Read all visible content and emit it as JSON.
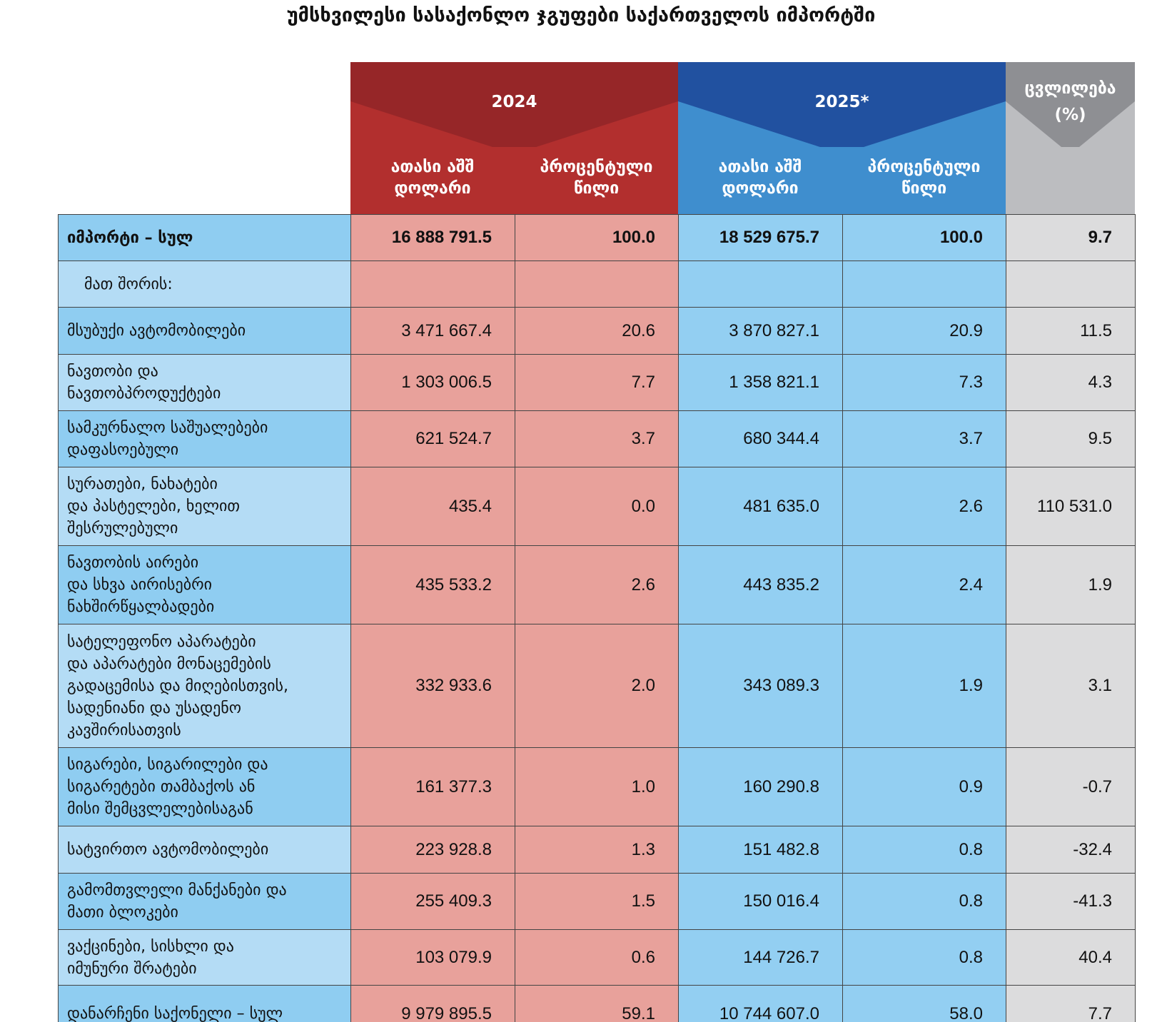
{
  "title": "უმსხვილესი სასაქონლო ჯგუფები საქართველოს იმპორტში",
  "header": {
    "groups": [
      {
        "year": "2024",
        "columns": [
          "ათასი აშშ\nდოლარი",
          "პროცენტული\nწილი"
        ]
      },
      {
        "year": "2025*",
        "columns": [
          "ათასი აშშ\nდოლარი",
          "პროცენტული\nწილი"
        ]
      }
    ],
    "change": "ცვლილება\n(%)"
  },
  "table": {
    "rows": [
      {
        "label": "იმპორტი – სულ",
        "values": [
          "16 888 791.5",
          "100.0",
          "18 529 675.7",
          "100.0",
          "9.7"
        ]
      },
      {
        "label": "მათ შორის:"
      },
      {
        "label": "მსუბუქი ავტომობილები",
        "values": [
          "3 471 667.4",
          "20.6",
          "3 870 827.1",
          "20.9",
          "11.5"
        ]
      },
      {
        "label": "ნავთობი და\nნავთობპროდუქტები",
        "values": [
          "1 303 006.5",
          "7.7",
          "1 358 821.1",
          "7.3",
          "4.3"
        ]
      },
      {
        "label": "სამკურნალო საშუალებები\nდაფასოებული",
        "values": [
          "621 524.7",
          "3.7",
          "680 344.4",
          "3.7",
          "9.5"
        ]
      },
      {
        "label": "სურათები, ნახატები\nდა პასტელები, ხელით\nშესრულებული",
        "values": [
          "435.4",
          "0.0",
          "481 635.0",
          "2.6",
          "110 531.0"
        ]
      },
      {
        "label": "ნავთობის აირები\nდა სხვა აირისებრი\nნახშირწყალბადები",
        "values": [
          "435 533.2",
          "2.6",
          "443 835.2",
          "2.4",
          "1.9"
        ]
      },
      {
        "label": "სატელეფონო აპარატები\nდა აპარატები  მონაცემების\nგადაცემისა და მიღებისთვის,\nსადენიანი და უსადენო\nკავშირისათვის",
        "values": [
          "332 933.6",
          "2.0",
          "343 089.3",
          "1.9",
          "3.1"
        ]
      },
      {
        "label": "სიგარები, სიგარილები და\nსიგარეტები თამბაქოს ან\nმისი შემცვლელებისაგან",
        "values": [
          "161 377.3",
          "1.0",
          "160 290.8",
          "0.9",
          "-0.7"
        ]
      },
      {
        "label": "სატვირთო ავტომობილები",
        "values": [
          "223 928.8",
          "1.3",
          "151 482.8",
          "0.8",
          "-32.4"
        ]
      },
      {
        "label": "გამომთვლელი მანქანები და\nმათი ბლოკები",
        "values": [
          "255 409.3",
          "1.5",
          "150 016.4",
          "0.8",
          "-41.3"
        ]
      },
      {
        "label": "ვაქცინები, სისხლი და\nიმუნური შრატები",
        "values": [
          "103 079.9",
          "0.6",
          "144 726.7",
          "0.8",
          "40.4"
        ]
      },
      {
        "label": "დანარჩენი საქონელი – სულ",
        "values": [
          "9 979 895.5",
          "59.1",
          "10 744 607.0",
          "58.0",
          "7.7"
        ]
      }
    ]
  }
}
